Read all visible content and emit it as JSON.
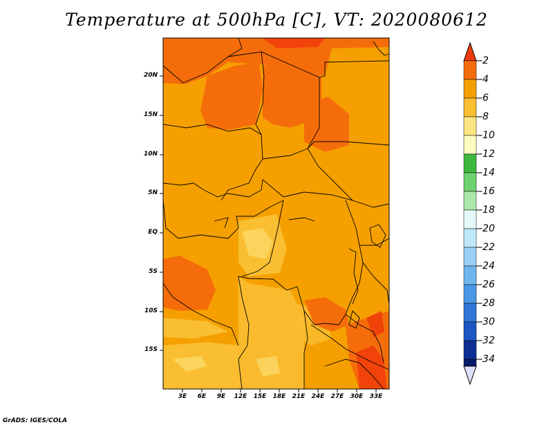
{
  "title": "Temperature at 500hPa [C], VT: 2020080612",
  "footer": "GrADS: IGES/COLA",
  "map": {
    "y_axis_labels": [
      "20N",
      "15N",
      "10N",
      "5N",
      "EQ",
      "5S",
      "10S",
      "15S"
    ],
    "x_axis_labels": [
      "3E",
      "6E",
      "9E",
      "12E",
      "15E",
      "18E",
      "21E",
      "24E",
      "27E",
      "30E",
      "33E"
    ],
    "lon_range": [
      0,
      34
    ],
    "lat_range": [
      -20,
      25
    ],
    "dominant_fill_color": "#f5a000"
  },
  "colorbar": {
    "labels": [
      "-2",
      "-4",
      "-6",
      "-8",
      "-10",
      "-12",
      "-14",
      "-16",
      "-18",
      "-20",
      "-22",
      "-24",
      "-26",
      "-28",
      "-30",
      "-32",
      "-34"
    ],
    "colors": [
      "#f03c0a",
      "#f56d0a",
      "#f5a000",
      "#fabe32",
      "#fde681",
      "#fefbbe",
      "#3db83d",
      "#6ed26e",
      "#a9e8a9",
      "#e2f9f7",
      "#bfe7fa",
      "#98d0f5",
      "#6fb6ef",
      "#4a98e6",
      "#2f78da",
      "#1b58c4",
      "#0d2f94",
      "#0a1a6a",
      "#dde0fa"
    ],
    "triangle_top_color": "#f03c0a",
    "triangle_bottom_color": "#dde0fa"
  }
}
